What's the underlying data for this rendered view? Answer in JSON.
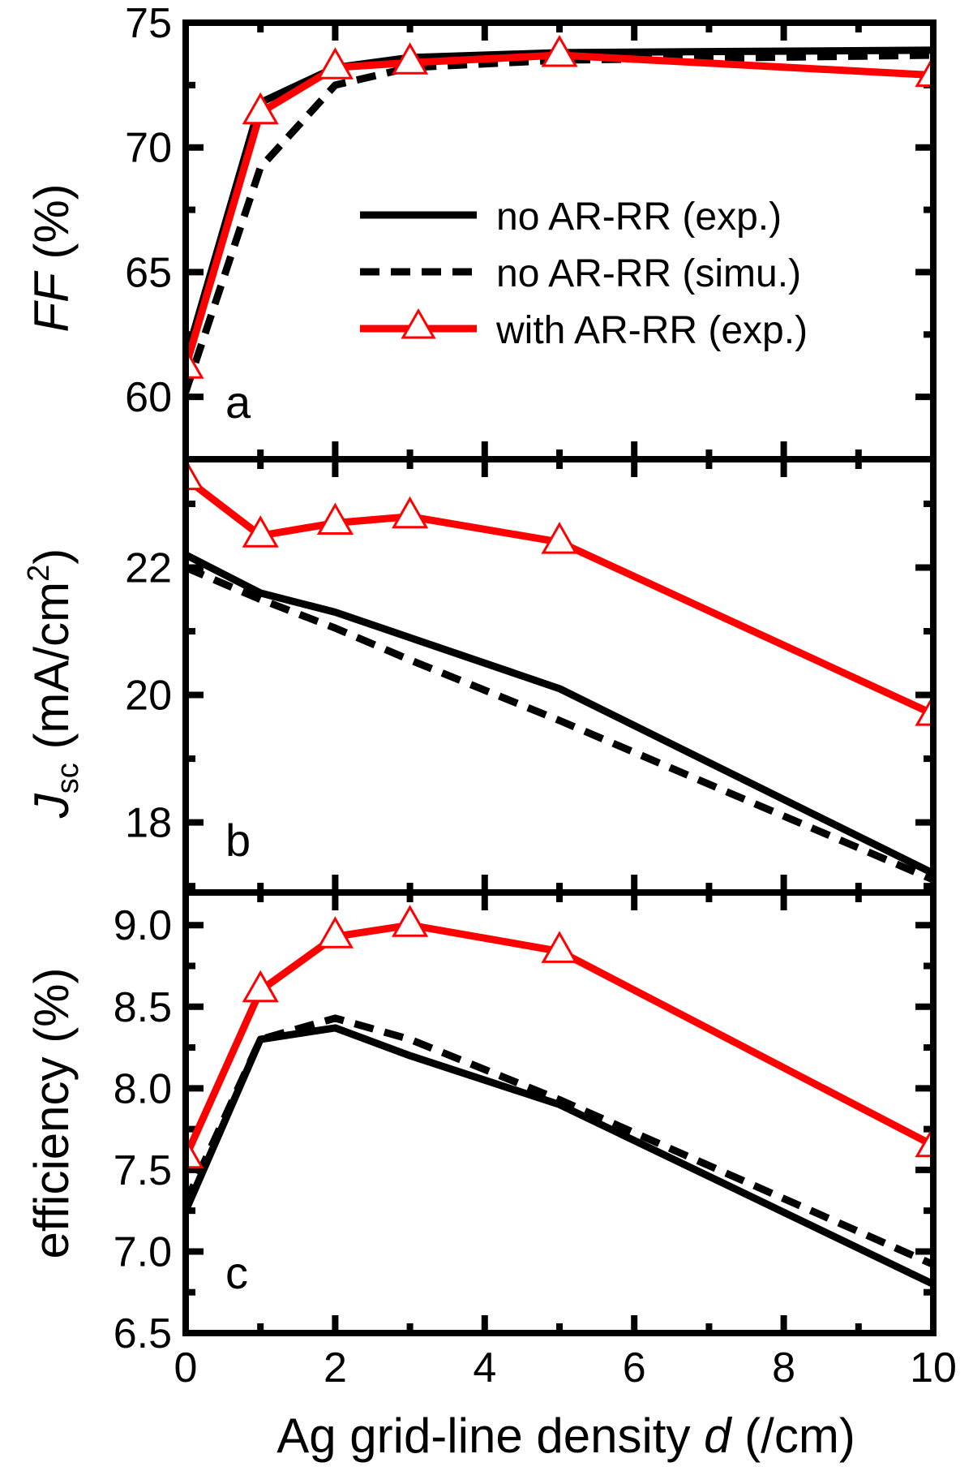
{
  "colors": {
    "exp": "#000000",
    "simu": "#000000",
    "ar": "#ff0000"
  },
  "legend": {
    "placement": "upper-right of panel a",
    "entries": [
      "no AR-RR (exp.)",
      "no AR-RR (simu.)",
      "with AR-RR (exp.)"
    ]
  },
  "xaxis": {
    "label_prefix": "Ag grid-line density ",
    "label_var": "d",
    "label_suffix": " (/cm)",
    "range": [
      0,
      10
    ],
    "ticks": [
      0,
      2,
      4,
      6,
      8,
      10
    ],
    "tick_labels": [
      "0",
      "2",
      "4",
      "6",
      "8",
      "10"
    ]
  },
  "chart_data": [
    {
      "type": "line",
      "panel": "a",
      "ylabel_var": "FF",
      "ylabel_unit": " (%)",
      "ylim": [
        57.5,
        75
      ],
      "yticks": [
        60,
        65,
        70,
        75
      ],
      "ytick_labels": [
        "60",
        "65",
        "70",
        "75"
      ],
      "x": [
        0,
        1,
        2,
        3,
        5,
        10
      ],
      "series": [
        {
          "name": "no AR-RR (exp.)",
          "style": "solid",
          "values": [
            61.5,
            71.8,
            73.2,
            73.6,
            73.8,
            73.9
          ]
        },
        {
          "name": "no AR-RR (simu.)",
          "style": "dashed",
          "values": [
            60.2,
            69.2,
            72.5,
            73.2,
            73.5,
            73.7
          ]
        },
        {
          "name": "with AR-RR (exp.)",
          "style": "solid-triangles",
          "values": [
            61.2,
            71.4,
            73.2,
            73.4,
            73.7,
            72.9
          ]
        }
      ]
    },
    {
      "type": "line",
      "panel": "b",
      "ylabel_var": "J",
      "ylabel_sub": "sc",
      "ylabel_unit_a": " (mA/cm",
      "ylabel_sup": "2",
      "ylabel_unit_b": ")",
      "ylim": [
        16.9,
        23.7
      ],
      "yticks": [
        18,
        20,
        22
      ],
      "ytick_labels": [
        "18",
        "20",
        "22"
      ],
      "x": [
        0,
        1,
        2,
        3,
        5,
        10
      ],
      "series": [
        {
          "name": "no AR-RR (exp.)",
          "style": "solid",
          "values": [
            22.2,
            21.6,
            21.3,
            20.9,
            20.1,
            17.2
          ]
        },
        {
          "name": "no AR-RR (simu.)",
          "style": "dashed",
          "values": [
            22.0,
            21.5,
            21.05,
            20.55,
            19.6,
            17.1
          ]
        },
        {
          "name": "with AR-RR (exp.)",
          "style": "solid-triangles",
          "values": [
            23.4,
            22.5,
            22.7,
            22.8,
            22.4,
            19.7
          ]
        }
      ]
    },
    {
      "type": "line",
      "panel": "c",
      "ylabel": "efficiency (%)",
      "ylim": [
        6.5,
        9.2
      ],
      "yticks": [
        6.5,
        7.0,
        7.5,
        8.0,
        8.5,
        9.0
      ],
      "ytick_labels": [
        "6.5",
        "7.0",
        "7.5",
        "8.0",
        "8.5",
        "9.0"
      ],
      "x": [
        0,
        1,
        2,
        3,
        5,
        10
      ],
      "series": [
        {
          "name": "no AR-RR (exp.)",
          "style": "solid",
          "values": [
            7.25,
            8.3,
            8.37,
            8.2,
            7.9,
            6.8
          ]
        },
        {
          "name": "no AR-RR (simu.)",
          "style": "dashed",
          "values": [
            7.3,
            8.3,
            8.43,
            8.3,
            7.93,
            6.92
          ]
        },
        {
          "name": "with AR-RR (exp.)",
          "style": "solid-triangles",
          "values": [
            7.58,
            8.6,
            8.93,
            9.0,
            8.84,
            7.65
          ]
        }
      ]
    }
  ],
  "panel_letters": [
    "a",
    "b",
    "c"
  ]
}
